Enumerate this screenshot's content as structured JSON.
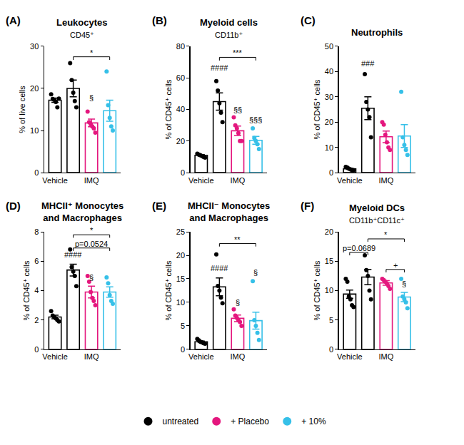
{
  "chart_data": [
    {
      "type": "bar",
      "label": "(A)",
      "title": "Leukocytes",
      "subtitle": "CD45⁺",
      "y_label": "% of live cells",
      "categories": [
        "Vehicle",
        null,
        "IMQ",
        null
      ],
      "ylim": [
        0,
        30
      ],
      "yticks": [
        0,
        10,
        20,
        30
      ],
      "legend": "bottom",
      "series": [
        {
          "name": "untreated",
          "color": "#000000",
          "values": [
            17.2,
            20.0,
            null,
            null
          ],
          "sem": [
            0.5,
            2.0,
            null,
            null
          ],
          "points": [
            [
              18.6,
              17.5,
              17.3,
              16.8,
              15.5,
              17.6
            ],
            [
              26,
              22,
              19,
              17,
              15.5
            ],
            null,
            null
          ]
        },
        {
          "name": "+ Placebo",
          "color": "#e4177e",
          "values": [
            null,
            null,
            11.8,
            null
          ],
          "sem": [
            null,
            null,
            0.9,
            null
          ],
          "points": [
            null,
            null,
            [
              14.5,
              12,
              11.5,
              11,
              10.5,
              9.5
            ],
            null
          ]
        },
        {
          "name": "+ 10%",
          "color": "#36c0e8",
          "values": [
            null,
            null,
            null,
            14.7
          ],
          "sem": [
            null,
            null,
            null,
            2.5
          ],
          "points": [
            null,
            null,
            null,
            [
              24,
              16,
              13,
              11,
              10
            ]
          ]
        }
      ],
      "annotations": [
        {
          "text": "*",
          "from": 1,
          "to": 3,
          "y": 27.5
        },
        {
          "text": "§",
          "at": 2,
          "y": 16.5
        }
      ]
    },
    {
      "type": "bar",
      "label": "(B)",
      "title": "Myeloid cells",
      "subtitle": "CD11b⁺",
      "y_label": "% of CD45⁺ cells",
      "categories": [
        "Vehicle",
        null,
        "IMQ",
        null
      ],
      "ylim": [
        0,
        80
      ],
      "yticks": [
        0,
        20,
        40,
        60,
        80
      ],
      "legend": "bottom",
      "series": [
        {
          "name": "untreated",
          "color": "#000000",
          "values": [
            11.0,
            45.0,
            null,
            null
          ],
          "sem": [
            0.5,
            5.5,
            null,
            null
          ],
          "points": [
            [
              12,
              11.5,
              11,
              10.5,
              10,
              9.5
            ],
            [
              58,
              52,
              44,
              38,
              32
            ],
            null,
            null
          ]
        },
        {
          "name": "+ Placebo",
          "color": "#e4177e",
          "values": [
            null,
            null,
            26.5,
            null
          ],
          "sem": [
            null,
            null,
            3.0,
            null
          ],
          "points": [
            null,
            null,
            [
              35,
              30,
              28,
              25,
              20,
              20
            ],
            null
          ]
        },
        {
          "name": "+ 10%",
          "color": "#36c0e8",
          "values": [
            null,
            null,
            null,
            20.5
          ],
          "sem": [
            null,
            null,
            null,
            2.5
          ],
          "points": [
            null,
            null,
            null,
            [
              28,
              22,
              20,
              18,
              15
            ]
          ]
        }
      ],
      "annotations": [
        {
          "text": "***",
          "from": 1,
          "to": 3,
          "y": 73
        },
        {
          "text": "####",
          "at": 1,
          "y": 63
        },
        {
          "text": "§§",
          "at": 2,
          "y": 36
        },
        {
          "text": "§§§",
          "at": 3,
          "y": 30
        }
      ]
    },
    {
      "type": "bar",
      "label": "(C)",
      "title": "Neutrophils",
      "y_label": "% of CD45⁺ cells",
      "categories": [
        "Vehicle",
        null,
        "IMQ",
        null
      ],
      "ylim": [
        0,
        50
      ],
      "yticks": [
        0,
        10,
        20,
        30,
        40,
        50
      ],
      "legend": "bottom",
      "series": [
        {
          "name": "untreated",
          "color": "#000000",
          "values": [
            1.5,
            25.5,
            null,
            null
          ],
          "sem": [
            0.2,
            4.5,
            null,
            null
          ],
          "points": [
            [
              2.3,
              2,
              1.6,
              1.3,
              1,
              1
            ],
            [
              39,
              28,
              25,
              22,
              14
            ],
            null,
            null
          ]
        },
        {
          "name": "+ Placebo",
          "color": "#e4177e",
          "values": [
            null,
            null,
            14.2,
            null
          ],
          "sem": [
            null,
            null,
            2.3,
            null
          ],
          "points": [
            null,
            null,
            [
              20,
              19,
              15,
              12,
              10,
              9
            ],
            null
          ]
        },
        {
          "name": "+ 10%",
          "color": "#36c0e8",
          "values": [
            null,
            null,
            null,
            14.5
          ],
          "sem": [
            null,
            null,
            null,
            4.5
          ],
          "points": [
            null,
            null,
            null,
            [
              32,
              14,
              11,
              9,
              7
            ]
          ]
        }
      ],
      "annotations": [
        {
          "text": "###",
          "at": 1,
          "y": 41
        }
      ]
    },
    {
      "type": "bar",
      "label": "(D)",
      "title": [
        "MHCII⁺ Monocytes",
        "and Macrophages"
      ],
      "y_label": "% of CD45⁺ cells",
      "categories": [
        "Vehicle",
        null,
        "IMQ",
        null
      ],
      "ylim": [
        0,
        8
      ],
      "yticks": [
        0,
        2,
        4,
        6,
        8
      ],
      "legend": "bottom",
      "series": [
        {
          "name": "untreated",
          "color": "#000000",
          "values": [
            2.2,
            5.4,
            null,
            null
          ],
          "sem": [
            0.12,
            0.4,
            null,
            null
          ],
          "points": [
            [
              2.6,
              2.3,
              2.2,
              2.1,
              2.0,
              1.9
            ],
            [
              6.8,
              5.6,
              5.3,
              5.0,
              4.3
            ],
            null,
            null
          ]
        },
        {
          "name": "+ Placebo",
          "color": "#e4177e",
          "values": [
            null,
            null,
            3.9,
            null
          ],
          "sem": [
            null,
            null,
            0.4,
            null
          ],
          "points": [
            null,
            null,
            [
              5.0,
              4.6,
              3.9,
              3.5,
              3.3,
              3.0
            ],
            null
          ]
        },
        {
          "name": "+ 10%",
          "color": "#36c0e8",
          "values": [
            null,
            null,
            null,
            3.9
          ],
          "sem": [
            null,
            null,
            null,
            0.35
          ],
          "points": [
            null,
            null,
            null,
            [
              4.9,
              4.5,
              3.7,
              3.3,
              3.1
            ]
          ]
        }
      ],
      "annotations": [
        {
          "text": "*",
          "from": 1,
          "to": 3,
          "y": 7.8
        },
        {
          "text": "p=0.0524",
          "from": 1,
          "to": 3,
          "y": 6.9
        },
        {
          "text": "####",
          "at": 1,
          "y": 6.05
        },
        {
          "text": "§",
          "at": 2,
          "y": 4.5
        }
      ]
    },
    {
      "type": "bar",
      "label": "(E)",
      "title": [
        "MHCII⁻ Monocytes",
        "and Macrophages"
      ],
      "y_label": "% of CD45⁺ cells",
      "categories": [
        "Vehicle",
        null,
        "IMQ",
        null
      ],
      "ylim": [
        0,
        25
      ],
      "yticks": [
        0,
        5,
        10,
        15,
        20,
        25
      ],
      "legend": "bottom",
      "series": [
        {
          "name": "untreated",
          "color": "#000000",
          "values": [
            1.6,
            13.3,
            null,
            null
          ],
          "sem": [
            0.15,
            1.9,
            null,
            null
          ],
          "points": [
            [
              2.2,
              1.9,
              1.6,
              1.5,
              1.3,
              1.2
            ],
            [
              20.2,
              13.5,
              12.5,
              11,
              9.8
            ],
            null,
            null
          ]
        },
        {
          "name": "+ Placebo",
          "color": "#e4177e",
          "values": [
            null,
            null,
            6.6,
            null
          ],
          "sem": [
            null,
            null,
            0.7,
            null
          ],
          "points": [
            null,
            null,
            [
              8.5,
              7.2,
              6.7,
              6.2,
              5.8,
              5.0
            ],
            null
          ]
        },
        {
          "name": "+ 10%",
          "color": "#36c0e8",
          "values": [
            null,
            null,
            null,
            6.1
          ],
          "sem": [
            null,
            null,
            null,
            1.8
          ],
          "points": [
            null,
            null,
            null,
            [
              14.5,
              6.2,
              5,
              3.5,
              2
            ]
          ]
        }
      ],
      "annotations": [
        {
          "text": "**",
          "from": 1,
          "to": 3,
          "y": 22.5
        },
        {
          "text": "####",
          "at": 1,
          "y": 16
        },
        {
          "text": "§",
          "at": 2,
          "y": 8.8
        },
        {
          "text": "§",
          "at": 3,
          "y": 15.2
        }
      ]
    },
    {
      "type": "bar",
      "label": "(F)",
      "title": "Myeloid DCs",
      "subtitle": "CD11b⁺CD11c⁺",
      "y_label": "% of CD45⁺ cells",
      "categories": [
        "Vehicle",
        null,
        "IMQ",
        null
      ],
      "ylim": [
        0,
        20
      ],
      "yticks": [
        0,
        5,
        10,
        15,
        20
      ],
      "legend": "bottom",
      "series": [
        {
          "name": "untreated",
          "color": "#000000",
          "values": [
            9.4,
            12.3,
            null,
            null
          ],
          "sem": [
            0.7,
            1.3,
            null,
            null
          ],
          "points": [
            [
              12,
              11.5,
              9,
              8.5,
              7.5,
              7.2
            ],
            [
              16,
              13.5,
              12.5,
              10,
              8.5
            ],
            null,
            null
          ]
        },
        {
          "name": "+ Placebo",
          "color": "#e4177e",
          "values": [
            null,
            null,
            11.3,
            null
          ],
          "sem": [
            null,
            null,
            0.4,
            null
          ],
          "points": [
            null,
            null,
            [
              12,
              11.8,
              11.5,
              11.2,
              10.8,
              10.3
            ],
            null
          ]
        },
        {
          "name": "+ 10%",
          "color": "#36c0e8",
          "values": [
            null,
            null,
            null,
            8.9
          ],
          "sem": [
            null,
            null,
            null,
            0.8
          ],
          "points": [
            null,
            null,
            null,
            [
              12,
              9,
              8.5,
              8,
              7
            ]
          ]
        }
      ],
      "annotations": [
        {
          "text": "p=0.0689",
          "from": 0,
          "to": 1,
          "y": 16.5
        },
        {
          "text": "*",
          "from": 1,
          "to": 3,
          "y": 18.8
        },
        {
          "text": "+",
          "from": 2,
          "to": 3,
          "y": 13.6
        },
        {
          "text": "§",
          "at": 3,
          "y": 10.2
        }
      ]
    }
  ]
}
